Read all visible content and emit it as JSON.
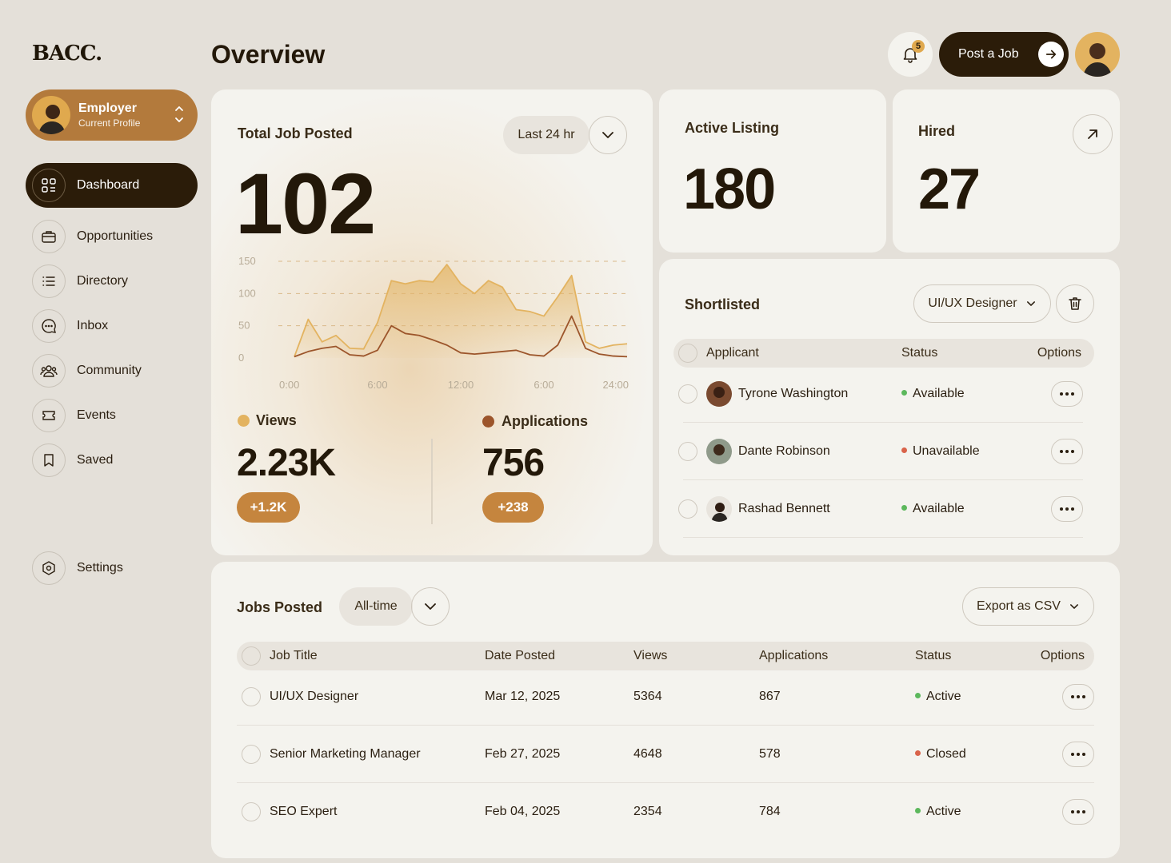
{
  "app": {
    "logo": "BACC.",
    "page_title": "Overview"
  },
  "header": {
    "notifications_count": "5",
    "post_job_label": "Post a Job"
  },
  "profile": {
    "name": "Employer",
    "role": "Current Profile"
  },
  "sidebar": {
    "items": [
      {
        "label": "Dashboard",
        "icon": "grid-icon"
      },
      {
        "label": "Opportunities",
        "icon": "briefcase-icon"
      },
      {
        "label": "Directory",
        "icon": "list-icon"
      },
      {
        "label": "Inbox",
        "icon": "chat-icon"
      },
      {
        "label": "Community",
        "icon": "people-icon"
      },
      {
        "label": "Events",
        "icon": "ticket-icon"
      },
      {
        "label": "Saved",
        "icon": "bookmark-icon"
      }
    ],
    "settings_label": "Settings"
  },
  "total_jobs": {
    "title": "Total Job Posted",
    "value": "102",
    "period": "Last 24 hr",
    "views_label": "Views",
    "views_value": "2.23K",
    "views_delta": "+1.2K",
    "applications_label": "Applications",
    "applications_value": "756",
    "applications_delta": "+238"
  },
  "chart_data": {
    "type": "area",
    "x": [
      "0:00",
      "1:00",
      "2:00",
      "3:00",
      "4:00",
      "5:00",
      "6:00",
      "7:00",
      "8:00",
      "9:00",
      "10:00",
      "11:00",
      "12:00",
      "13:00",
      "14:00",
      "15:00",
      "16:00",
      "17:00",
      "18:00",
      "19:00",
      "20:00",
      "21:00",
      "22:00",
      "23:00",
      "24:00"
    ],
    "x_ticks": [
      "0:00",
      "6:00",
      "12:00",
      "6:00",
      "24:00"
    ],
    "y_ticks": [
      "0",
      "50",
      "100",
      "150"
    ],
    "ylim": [
      0,
      150
    ],
    "series": [
      {
        "name": "Views",
        "color": "#e3b360",
        "values": [
          2,
          60,
          25,
          35,
          15,
          14,
          55,
          120,
          115,
          120,
          118,
          145,
          115,
          100,
          120,
          110,
          75,
          72,
          65,
          95,
          128,
          25,
          15,
          20,
          22
        ]
      },
      {
        "name": "Applications",
        "color": "#9c552b",
        "values": [
          2,
          10,
          15,
          18,
          5,
          3,
          12,
          50,
          38,
          35,
          28,
          20,
          8,
          6,
          8,
          10,
          12,
          5,
          3,
          20,
          65,
          15,
          6,
          3,
          2
        ]
      }
    ]
  },
  "colors": {
    "views": "#e3b360",
    "applications": "#9c552b",
    "available": "#5cb85c",
    "unavailable": "#d9634a",
    "accent": "#c5853e",
    "dark": "#2b1c09"
  },
  "active_listing": {
    "label": "Active Listing",
    "value": "180"
  },
  "hired": {
    "label": "Hired",
    "value": "27"
  },
  "shortlisted": {
    "title": "Shortlisted",
    "filter": "UI/UX Designer",
    "columns": [
      "Applicant",
      "Status",
      "Options"
    ],
    "rows": [
      {
        "name": "Tyrone Washington",
        "status": "Available"
      },
      {
        "name": "Dante Robinson",
        "status": "Unavailable"
      },
      {
        "name": "Rashad Bennett",
        "status": "Available"
      }
    ]
  },
  "jobs_posted": {
    "title": "Jobs Posted",
    "filter": "All-time",
    "export_label": "Export as CSV",
    "columns": [
      "Job Title",
      "Date Posted",
      "Views",
      "Applications",
      "Status",
      "Options"
    ],
    "rows": [
      {
        "title": "UI/UX Designer",
        "date": "Mar 12, 2025",
        "views": "5364",
        "applications": "867",
        "status": "Active"
      },
      {
        "title": "Senior Marketing Manager",
        "date": "Feb 27, 2025",
        "views": "4648",
        "applications": "578",
        "status": "Closed"
      },
      {
        "title": "SEO Expert",
        "date": "Feb 04, 2025",
        "views": "2354",
        "applications": "784",
        "status": "Active"
      }
    ]
  }
}
